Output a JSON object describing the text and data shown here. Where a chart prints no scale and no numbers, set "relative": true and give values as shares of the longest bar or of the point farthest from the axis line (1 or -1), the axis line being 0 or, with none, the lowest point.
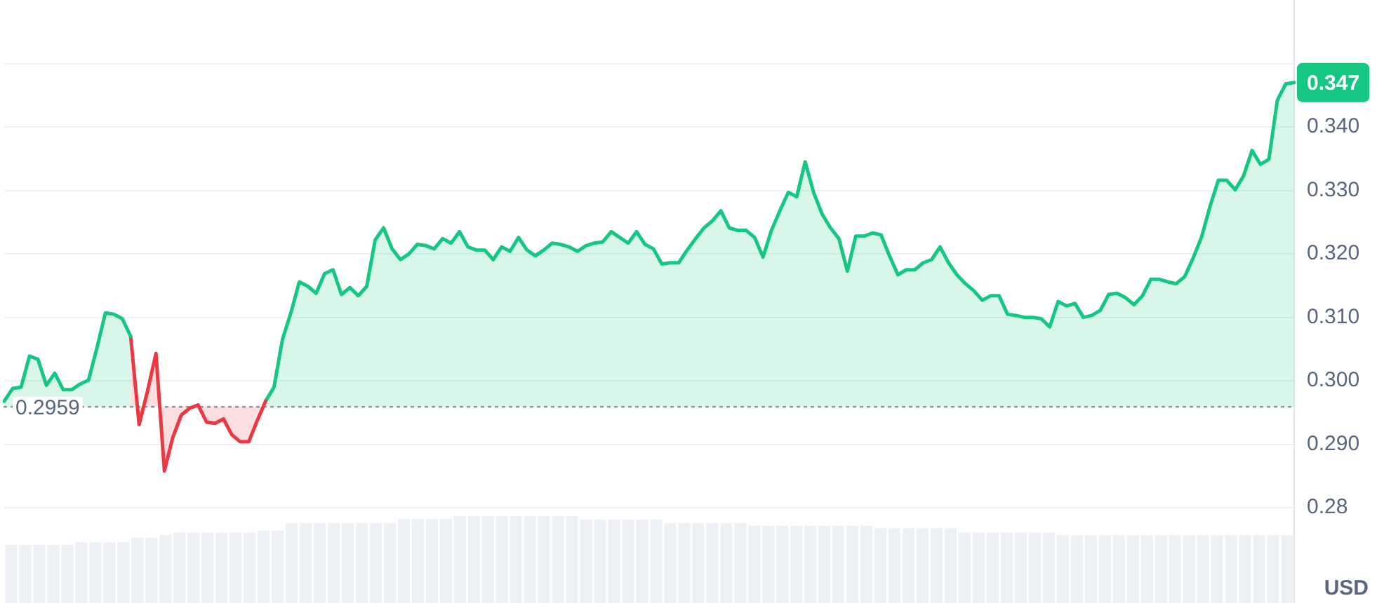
{
  "chart_data": [
    {
      "type": "area",
      "ylabel": "USD",
      "categories": [
        null,
        null,
        null,
        null,
        null,
        null,
        null,
        null,
        null,
        null,
        null,
        null,
        null,
        null,
        null,
        null,
        null,
        null,
        null,
        null,
        null,
        null,
        null,
        null,
        null,
        null,
        null,
        null,
        null,
        null,
        null,
        null,
        null,
        null,
        null,
        null,
        null,
        null,
        null,
        null,
        null,
        null,
        null,
        null,
        null,
        null,
        null,
        null,
        null,
        null,
        null,
        null,
        null,
        null,
        null,
        null,
        null,
        null,
        null,
        null,
        null,
        null,
        null,
        null,
        null,
        null,
        null,
        null,
        null,
        null,
        null,
        null,
        null,
        null,
        null,
        null,
        null,
        null,
        null,
        null,
        null,
        null,
        null,
        null,
        null,
        null,
        null,
        null,
        null,
        null,
        null,
        null,
        null,
        null,
        null,
        null,
        null,
        null,
        null,
        null,
        null,
        null,
        null,
        null,
        null,
        null,
        null,
        null,
        null,
        null,
        null,
        null,
        null,
        null,
        null,
        null,
        null,
        null,
        null,
        null,
        null,
        null,
        null,
        null,
        null,
        null,
        null,
        null,
        null,
        null,
        null,
        null,
        null,
        null,
        null,
        null,
        null,
        null,
        null,
        null,
        null,
        null,
        null,
        null,
        null,
        null,
        null,
        null,
        null,
        null,
        null,
        null,
        null,
        null
      ],
      "series": [
        {
          "color": "#16c784",
          "values": [
            0.2968,
            0.2988,
            0.299,
            0.3039,
            0.3034,
            0.2993,
            0.3012,
            0.2986,
            0.2986,
            0.2995,
            0.3001,
            0.3052,
            0.3107,
            0.3105,
            0.3098,
            0.307,
            null,
            null,
            null,
            null,
            null,
            null,
            null,
            null,
            null,
            null,
            null,
            null,
            null,
            null,
            null,
            null,
            null,
            null,
            null,
            null,
            null,
            null,
            null,
            null,
            null,
            null,
            null,
            null,
            null,
            null,
            null,
            null,
            null,
            null,
            null,
            null,
            null,
            null,
            null,
            null,
            null,
            null,
            null,
            null,
            null,
            null,
            null,
            null,
            null,
            null,
            null,
            null,
            null,
            null,
            null,
            null,
            null,
            null,
            null,
            null,
            null,
            null,
            null,
            null,
            null,
            null,
            null,
            null,
            null,
            null,
            null,
            null,
            null,
            null,
            null,
            null,
            null,
            null,
            null,
            null,
            null,
            null,
            null,
            null,
            null,
            null,
            null,
            null,
            null,
            null,
            null,
            null,
            null,
            null,
            null,
            null,
            null,
            null,
            null,
            null,
            null,
            null,
            null,
            null,
            null,
            null,
            null,
            null,
            null,
            null,
            null,
            null,
            null,
            null,
            null,
            null,
            null,
            null,
            null,
            null,
            null,
            null,
            null,
            null,
            null,
            null,
            null,
            null,
            null,
            null,
            null,
            null,
            null,
            null,
            null,
            null,
            null,
            null
          ]
        },
        {
          "color": "#ea3943",
          "values": [
            null,
            null,
            null,
            null,
            null,
            null,
            null,
            null,
            null,
            null,
            null,
            null,
            null,
            null,
            null,
            0.307,
            0.2931,
            0.2984,
            0.3043,
            0.2858,
            0.2911,
            0.2946,
            0.2957,
            0.2962,
            0.2935,
            0.2933,
            0.294,
            0.2915,
            0.2904,
            0.2904,
            0.2937,
            0.2968,
            null,
            null,
            null,
            null,
            null,
            null,
            null,
            null,
            null,
            null,
            null,
            null,
            null,
            null,
            null,
            null,
            null,
            null,
            null,
            null,
            null,
            null,
            null,
            null,
            null,
            null,
            null,
            null,
            null,
            null,
            null,
            null,
            null,
            null,
            null,
            null,
            null,
            null,
            null,
            null,
            null,
            null,
            null,
            null,
            null,
            null,
            null,
            null,
            null,
            null,
            null,
            null,
            null,
            null,
            null,
            null,
            null,
            null,
            null,
            null,
            null,
            null,
            null,
            null,
            null,
            null,
            null,
            null,
            null,
            null,
            null,
            null,
            null,
            null,
            null,
            null,
            null,
            null,
            null,
            null,
            null,
            null,
            null,
            null,
            null,
            null,
            null,
            null,
            null,
            null,
            null,
            null,
            null,
            null,
            null,
            null,
            null,
            null,
            null,
            null,
            null,
            null,
            null,
            null,
            null,
            null,
            null,
            null,
            null,
            null,
            null,
            null,
            null,
            null,
            null,
            null,
            null,
            null,
            null,
            null,
            null,
            null
          ]
        },
        {
          "color": "#16c784",
          "values": [
            null,
            null,
            null,
            null,
            null,
            null,
            null,
            null,
            null,
            null,
            null,
            null,
            null,
            null,
            null,
            null,
            null,
            null,
            null,
            null,
            null,
            null,
            null,
            null,
            null,
            null,
            null,
            null,
            null,
            null,
            null,
            0.2968,
            0.299,
            0.3065,
            0.3107,
            0.3156,
            0.3149,
            0.3138,
            0.3169,
            0.3175,
            0.3136,
            0.3147,
            0.3134,
            0.3149,
            0.3222,
            0.3241,
            0.3208,
            0.3191,
            0.32,
            0.3215,
            0.3213,
            0.3208,
            0.3224,
            0.3217,
            0.3235,
            0.3211,
            0.3206,
            0.3206,
            0.3191,
            0.3211,
            0.3204,
            0.3226,
            0.3206,
            0.3197,
            0.3206,
            0.3217,
            0.3215,
            0.3211,
            0.3204,
            0.3213,
            0.3217,
            0.3219,
            0.3235,
            0.3226,
            0.3217,
            0.3235,
            0.3215,
            0.3208,
            0.3184,
            0.3186,
            0.3186,
            0.3206,
            0.3224,
            0.3241,
            0.3252,
            0.3268,
            0.3241,
            0.3237,
            0.3237,
            0.3226,
            0.3195,
            0.3237,
            0.3268,
            0.3297,
            0.329,
            0.3345,
            0.3297,
            0.3263,
            0.3241,
            0.3224,
            0.3173,
            0.3228,
            0.3228,
            0.3233,
            0.323,
            0.3197,
            0.3167,
            0.3175,
            0.3175,
            0.3186,
            0.3191,
            0.3211,
            0.3186,
            0.3167,
            0.3153,
            0.3142,
            0.3127,
            0.3134,
            0.3134,
            0.3105,
            0.3103,
            0.31,
            0.31,
            0.3098,
            0.3085,
            0.3125,
            0.3118,
            0.3122,
            0.31,
            0.3103,
            0.3111,
            0.3136,
            0.3138,
            0.3131,
            0.312,
            0.3134,
            0.316,
            0.316,
            0.3156,
            0.3153,
            0.3164,
            0.3193,
            0.3226,
            0.3274,
            0.3316,
            0.3316,
            0.3301,
            0.3323,
            0.3363,
            0.3341,
            0.3349,
            0.3442,
            0.3468,
            0.347
          ]
        }
      ],
      "ylim": [
        0.265,
        0.36
      ],
      "yticks": [
        {
          "value": 0.35,
          "label": null
        },
        {
          "value": 0.34,
          "label": "0.340"
        },
        {
          "value": 0.33,
          "label": "0.330"
        },
        {
          "value": 0.32,
          "label": "0.320"
        },
        {
          "value": 0.31,
          "label": "0.310"
        },
        {
          "value": 0.3,
          "label": "0.300"
        },
        {
          "value": 0.29,
          "label": "0.290"
        },
        0.28
      ],
      "grid": "y",
      "tick_labels": "y",
      "ref_lines": [
        {
          "axis": "y",
          "value": 0.2959,
          "label": "0.2959",
          "line_style": "dotted",
          "color": "#8c96a8"
        }
      ],
      "annotations": [
        "0.347"
      ]
    },
    {
      "type": "bar",
      "relative": true,
      "tick_labels": false,
      "color": "#edf0f4",
      "categories": [
        null,
        null,
        null,
        null,
        null,
        null,
        null,
        null,
        null,
        null,
        null,
        null,
        null,
        null,
        null,
        null,
        null,
        null,
        null,
        null,
        null,
        null,
        null,
        null,
        null,
        null,
        null,
        null,
        null,
        null,
        null,
        null,
        null,
        null,
        null,
        null,
        null,
        null,
        null,
        null,
        null,
        null,
        null,
        null,
        null,
        null,
        null,
        null,
        null,
        null,
        null,
        null,
        null,
        null,
        null,
        null,
        null,
        null,
        null,
        null,
        null,
        null,
        null,
        null,
        null,
        null,
        null,
        null,
        null,
        null,
        null,
        null,
        null,
        null,
        null,
        null,
        null,
        null,
        null,
        null,
        null,
        null,
        null,
        null,
        null,
        null,
        null,
        null,
        null,
        null,
        null,
        null
      ],
      "values": [
        0.67,
        0.67,
        0.67,
        0.67,
        0.67,
        0.7,
        0.7,
        0.7,
        0.7,
        0.75,
        0.75,
        0.78,
        0.81,
        0.81,
        0.81,
        0.81,
        0.81,
        0.81,
        0.83,
        0.83,
        0.92,
        0.92,
        0.92,
        0.92,
        0.92,
        0.92,
        0.92,
        0.92,
        0.97,
        0.97,
        0.97,
        0.97,
        1,
        1,
        1,
        1,
        1,
        1,
        1,
        1,
        1,
        0.96,
        0.96,
        0.96,
        0.96,
        0.96,
        0.96,
        0.92,
        0.92,
        0.92,
        0.92,
        0.92,
        0.92,
        0.89,
        0.89,
        0.89,
        0.89,
        0.89,
        0.89,
        0.89,
        0.89,
        0.89,
        0.86,
        0.86,
        0.86,
        0.86,
        0.86,
        0.86,
        0.81,
        0.81,
        0.81,
        0.81,
        0.81,
        0.81,
        0.81,
        0.78,
        0.78,
        0.78,
        0.78,
        0.78,
        0.78,
        0.78,
        0.78,
        0.78,
        0.78,
        0.78,
        0.78,
        0.78,
        0.78,
        0.78,
        0.78,
        0.78
      ]
    }
  ]
}
